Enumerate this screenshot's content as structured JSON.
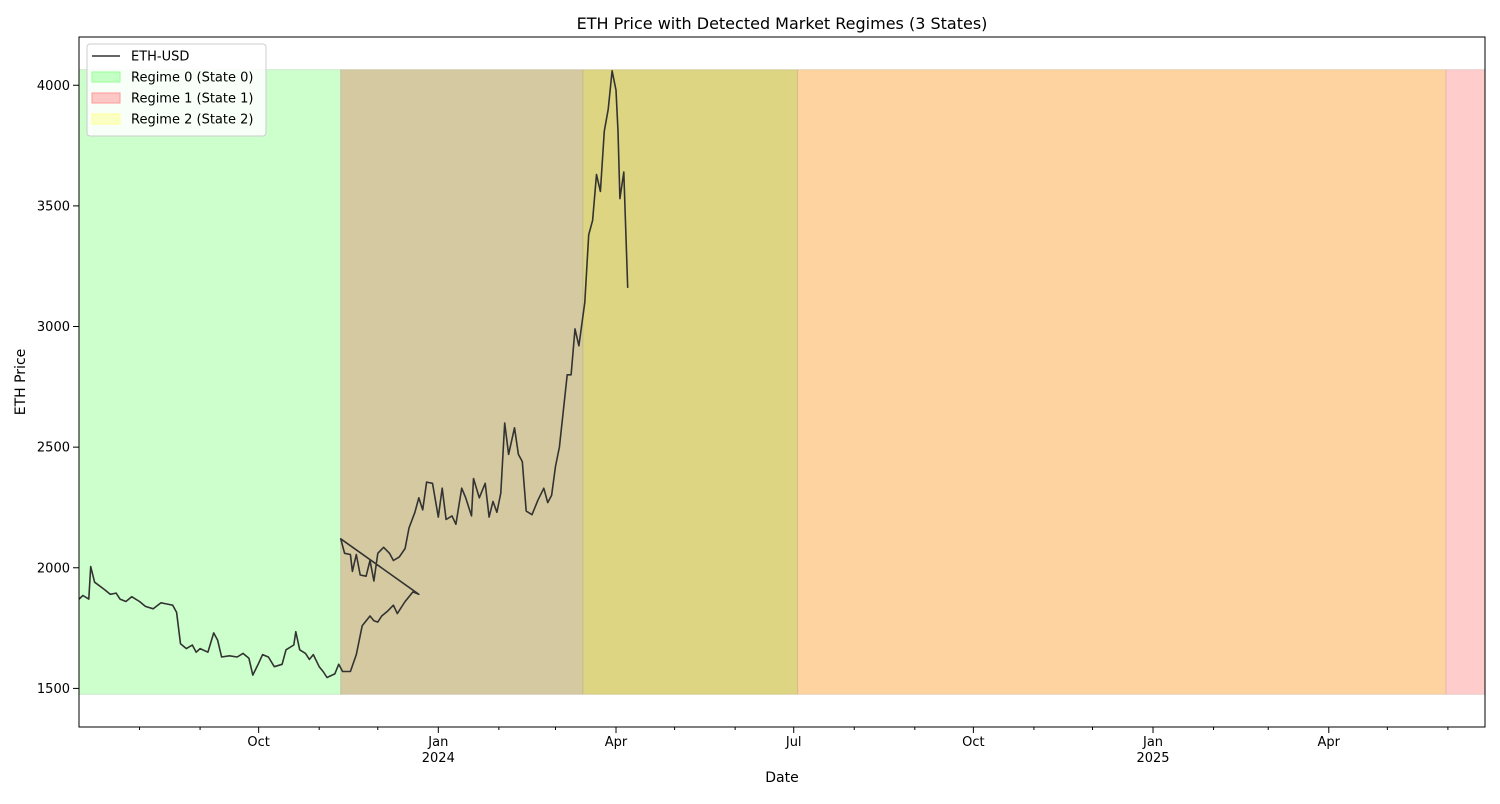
{
  "chart_data": {
    "type": "line",
    "title": "ETH Price with Detected Market Regimes (3 States)",
    "xlabel": "Date",
    "ylabel": "ETH Price",
    "xlim": [
      "2023-07-01",
      "2025-06-20"
    ],
    "ylim": [
      1340,
      4200
    ],
    "yticks": [
      1500,
      2000,
      2500,
      3000,
      3500,
      4000
    ],
    "xticks": [
      {
        "date": "2023-10-01",
        "label": "Oct",
        "year": ""
      },
      {
        "date": "2024-01-01",
        "label": "Jan",
        "year": "2024"
      },
      {
        "date": "2024-04-01",
        "label": "Apr",
        "year": ""
      },
      {
        "date": "2024-07-01",
        "label": "Jul",
        "year": ""
      },
      {
        "date": "2024-10-01",
        "label": "Oct",
        "year": ""
      },
      {
        "date": "2025-01-01",
        "label": "Jan",
        "year": "2025"
      },
      {
        "date": "2025-04-01",
        "label": "Apr",
        "year": ""
      }
    ],
    "minor_ticks": [
      "2023-08-01",
      "2023-09-01",
      "2023-11-01",
      "2023-12-01",
      "2024-02-01",
      "2024-03-01",
      "2024-05-01",
      "2024-06-01",
      "2024-08-01",
      "2024-09-01",
      "2024-11-01",
      "2024-12-01",
      "2025-02-01",
      "2025-03-01",
      "2025-05-01",
      "2025-06-01"
    ],
    "grid": false,
    "legend_position": "upper-left",
    "legend": [
      {
        "label": "ETH-USD",
        "kind": "line",
        "color": "#333333"
      },
      {
        "label": "Regime 0 (State 0)",
        "kind": "patch",
        "color": "#99ff99"
      },
      {
        "label": "Regime 1 (State 1)",
        "kind": "patch",
        "color": "#ff9999"
      },
      {
        "label": "Regime 2 (State 2)",
        "kind": "patch",
        "color": "#ffff99"
      }
    ],
    "regime_spans": [
      {
        "start": "2023-07-01",
        "end": "2023-11-12",
        "regime": 0,
        "color": "#ccffcc"
      },
      {
        "start": "2023-11-12",
        "end": "2024-03-15",
        "regime": 1,
        "color": "#d4c9a0"
      },
      {
        "start": "2024-03-15",
        "end": "2024-07-03",
        "regime": 2,
        "color": "#ddd582"
      },
      {
        "start": "2024-07-03",
        "end": "2025-05-31",
        "regime": 1,
        "color": "#fed3a0"
      },
      {
        "start": "2025-05-31",
        "end": "2025-06-20",
        "regime": 1,
        "color": "#ffcccc"
      }
    ],
    "span_y_range": [
      1475,
      4065
    ],
    "series": [
      {
        "name": "ETH-USD",
        "color": "#333333",
        "points": [
          [
            "2023-07-01",
            1870
          ],
          [
            "2023-07-03",
            1885
          ],
          [
            "2023-07-06",
            1870
          ],
          [
            "2023-07-07",
            2005
          ],
          [
            "2023-07-09",
            1940
          ],
          [
            "2023-07-14",
            1910
          ],
          [
            "2023-07-17",
            1890
          ],
          [
            "2023-07-20",
            1895
          ],
          [
            "2023-07-22",
            1870
          ],
          [
            "2023-07-25",
            1860
          ],
          [
            "2023-07-28",
            1880
          ],
          [
            "2023-08-01",
            1860
          ],
          [
            "2023-08-04",
            1840
          ],
          [
            "2023-08-08",
            1830
          ],
          [
            "2023-08-12",
            1855
          ],
          [
            "2023-08-15",
            1850
          ],
          [
            "2023-08-18",
            1845
          ],
          [
            "2023-08-20",
            1815
          ],
          [
            "2023-08-22",
            1685
          ],
          [
            "2023-08-25",
            1665
          ],
          [
            "2023-08-28",
            1680
          ],
          [
            "2023-08-30",
            1650
          ],
          [
            "2023-09-01",
            1665
          ],
          [
            "2023-09-05",
            1650
          ],
          [
            "2023-09-08",
            1730
          ],
          [
            "2023-09-10",
            1700
          ],
          [
            "2023-09-12",
            1630
          ],
          [
            "2023-09-16",
            1635
          ],
          [
            "2023-09-20",
            1630
          ],
          [
            "2023-09-23",
            1645
          ],
          [
            "2023-09-26",
            1625
          ],
          [
            "2023-09-28",
            1555
          ],
          [
            "2023-10-01",
            1605
          ],
          [
            "2023-10-03",
            1640
          ],
          [
            "2023-10-06",
            1630
          ],
          [
            "2023-10-09",
            1590
          ],
          [
            "2023-10-13",
            1600
          ],
          [
            "2023-10-15",
            1660
          ],
          [
            "2023-10-19",
            1680
          ],
          [
            "2023-10-20",
            1735
          ],
          [
            "2023-10-22",
            1660
          ],
          [
            "2023-10-25",
            1645
          ],
          [
            "2023-10-27",
            1620
          ],
          [
            "2023-10-29",
            1640
          ],
          [
            "2023-11-01",
            1590
          ],
          [
            "2023-11-03",
            1570
          ],
          [
            "2023-11-05",
            1545
          ],
          [
            "2023-11-09",
            1560
          ],
          [
            "2023-11-11",
            1600
          ],
          [
            "2023-11-13",
            1570
          ],
          [
            "2023-11-17",
            1570
          ],
          [
            "2023-11-20",
            1640
          ],
          [
            "2023-11-23",
            1760
          ],
          [
            "2023-11-27",
            1800
          ],
          [
            "2023-11-29",
            1780
          ],
          [
            "2023-12-01",
            1775
          ],
          [
            "2023-12-03",
            1800
          ],
          [
            "2023-12-06",
            1820
          ],
          [
            "2023-12-09",
            1845
          ],
          [
            "2023-12-11",
            1810
          ],
          [
            "2023-12-15",
            1860
          ],
          [
            "2023-12-17",
            1880
          ],
          [
            "2023-12-19",
            1900
          ],
          [
            "2023-12-22",
            1890
          ],
          [
            "2023-11-12",
            2120
          ],
          [
            "2023-11-14",
            2060
          ],
          [
            "2023-11-17",
            2055
          ],
          [
            "2023-11-18",
            1985
          ],
          [
            "2023-11-20",
            2055
          ],
          [
            "2023-11-22",
            1970
          ],
          [
            "2023-11-25",
            1965
          ],
          [
            "2023-11-27",
            2030
          ],
          [
            "2023-11-29",
            1945
          ],
          [
            "2023-12-01",
            2060
          ],
          [
            "2023-12-04",
            2085
          ],
          [
            "2023-12-07",
            2060
          ],
          [
            "2023-12-09",
            2030
          ],
          [
            "2023-12-12",
            2045
          ],
          [
            "2023-12-15",
            2080
          ],
          [
            "2023-12-17",
            2165
          ],
          [
            "2023-12-20",
            2230
          ],
          [
            "2023-12-22",
            2290
          ],
          [
            "2023-12-24",
            2240
          ],
          [
            "2023-12-26",
            2355
          ],
          [
            "2023-12-29",
            2350
          ],
          [
            "2024-01-01",
            2210
          ],
          [
            "2024-01-03",
            2330
          ],
          [
            "2024-01-05",
            2200
          ],
          [
            "2024-01-08",
            2215
          ],
          [
            "2024-01-10",
            2180
          ],
          [
            "2024-01-13",
            2330
          ],
          [
            "2024-01-15",
            2290
          ],
          [
            "2024-01-18",
            2215
          ],
          [
            "2024-01-19",
            2370
          ],
          [
            "2024-01-22",
            2290
          ],
          [
            "2024-01-25",
            2350
          ],
          [
            "2024-01-27",
            2210
          ],
          [
            "2024-01-29",
            2275
          ],
          [
            "2024-01-31",
            2230
          ],
          [
            "2024-02-02",
            2310
          ],
          [
            "2024-02-04",
            2600
          ],
          [
            "2024-02-06",
            2470
          ],
          [
            "2024-02-09",
            2580
          ],
          [
            "2024-02-11",
            2470
          ],
          [
            "2024-02-13",
            2440
          ],
          [
            "2024-02-15",
            2235
          ],
          [
            "2024-02-18",
            2220
          ],
          [
            "2024-02-21",
            2280
          ],
          [
            "2024-02-24",
            2330
          ],
          [
            "2024-02-26",
            2270
          ],
          [
            "2024-02-28",
            2300
          ],
          [
            "2024-03-01",
            2420
          ],
          [
            "2024-03-03",
            2500
          ],
          [
            "2024-03-05",
            2650
          ],
          [
            "2024-03-07",
            2800
          ],
          [
            "2024-03-09",
            2800
          ],
          [
            "2024-03-11",
            2990
          ],
          [
            "2024-03-13",
            2920
          ],
          [
            "2024-03-16",
            3100
          ],
          [
            "2024-03-18",
            3380
          ],
          [
            "2024-03-20",
            3440
          ],
          [
            "2024-03-22",
            3630
          ],
          [
            "2024-03-24",
            3560
          ],
          [
            "2024-03-26",
            3810
          ],
          [
            "2024-03-28",
            3900
          ],
          [
            "2024-03-30",
            4060
          ],
          [
            "2024-04-01",
            3980
          ],
          [
            "2024-04-02",
            3810
          ],
          [
            "2024-04-03",
            3530
          ],
          [
            "2024-04-05",
            3640
          ],
          [
            "2024-04-07",
            3160
          ]
        ]
      }
    ]
  }
}
